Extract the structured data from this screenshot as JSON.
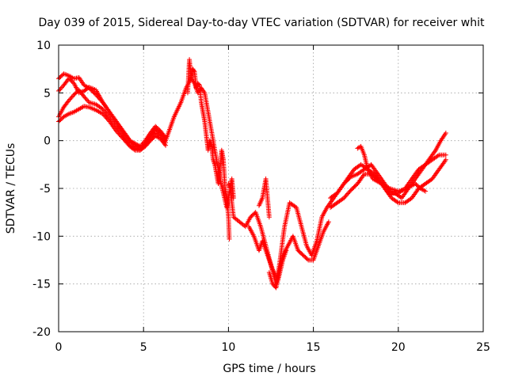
{
  "chart_data": {
    "type": "scatter",
    "title": "Day 039 of 2015, Sidereal Day-to-day VTEC variation (SDTVAR) for receiver whit",
    "xlabel": "GPS time / hours",
    "ylabel": "SDTVAR / TECUs",
    "xlim": [
      0,
      25
    ],
    "ylim": [
      -20,
      10
    ],
    "xticks": [
      0,
      5,
      10,
      15,
      20,
      25
    ],
    "yticks": [
      -20,
      -15,
      -10,
      -5,
      0,
      5,
      10
    ],
    "grid": true,
    "marker": "+",
    "marker_color": "#ff0000",
    "series": [
      {
        "x": [
          0.0,
          0.3,
          0.6,
          0.9,
          1.2,
          1.5,
          1.8,
          2.2,
          2.6,
          3.0,
          3.4,
          3.8,
          4.2,
          4.5,
          4.8,
          5.1,
          5.4,
          5.7,
          6.0,
          6.3,
          6.8,
          7.2,
          7.5,
          7.8,
          8.0,
          8.2,
          8.4,
          8.6,
          8.8,
          9.0,
          9.3,
          9.5,
          9.7,
          9.9,
          10.1,
          10.3,
          11.0,
          11.3,
          11.6,
          11.9,
          12.2,
          12.5,
          12.8,
          13.0,
          13.3,
          13.6,
          14.0,
          14.3,
          14.6,
          14.9,
          15.2,
          15.5,
          15.8,
          16.2,
          16.6,
          17.0,
          17.4,
          17.8,
          18.2,
          18.6,
          19.0,
          19.4,
          19.8,
          20.2,
          20.6,
          21.0,
          21.4,
          21.8,
          22.2,
          22.5,
          22.8
        ],
        "y": [
          6.5,
          7.0,
          6.8,
          6.5,
          6.6,
          5.8,
          5.5,
          4.8,
          4.0,
          3.0,
          2.0,
          1.0,
          0.0,
          -0.5,
          -0.8,
          -0.3,
          0.5,
          1.2,
          0.8,
          0.0,
          2.5,
          4.0,
          5.5,
          6.5,
          6.0,
          5.0,
          5.5,
          5.0,
          3.0,
          1.0,
          -2.0,
          -4.0,
          -5.5,
          -7.0,
          -5.0,
          -8.0,
          -9.0,
          -8.0,
          -7.5,
          -9.0,
          -11.0,
          -13.0,
          -15.0,
          -13.0,
          -9.0,
          -6.5,
          -7.0,
          -9.0,
          -11.0,
          -12.0,
          -10.5,
          -8.0,
          -7.0,
          -6.0,
          -5.0,
          -4.0,
          -3.0,
          -2.5,
          -3.0,
          -3.5,
          -4.5,
          -5.5,
          -5.5,
          -6.0,
          -5.0,
          -4.0,
          -3.0,
          -2.0,
          -1.0,
          0.0,
          0.8
        ]
      },
      {
        "x": [
          0.0,
          0.3,
          0.6,
          0.9,
          1.2,
          1.5,
          1.8,
          2.2,
          2.6,
          3.0,
          3.4,
          3.8,
          4.2,
          4.5,
          4.8,
          5.1,
          5.4,
          5.7,
          6.0,
          6.3
        ],
        "y": [
          5.2,
          5.8,
          6.5,
          6.0,
          5.0,
          5.2,
          5.6,
          5.3,
          4.0,
          3.0,
          2.0,
          1.0,
          0.0,
          -0.3,
          -0.6,
          0.0,
          0.8,
          1.5,
          1.0,
          0.3
        ]
      },
      {
        "x": [
          0.0,
          0.3,
          0.6,
          0.9,
          1.2,
          1.5,
          1.8,
          2.2,
          2.6,
          3.0,
          3.4,
          3.8,
          4.2,
          4.5,
          4.8,
          5.1,
          5.4,
          5.7,
          6.0,
          6.3
        ],
        "y": [
          2.5,
          3.5,
          4.2,
          4.8,
          5.3,
          4.6,
          4.0,
          3.8,
          3.3,
          2.4,
          1.5,
          0.5,
          -0.5,
          -0.8,
          -1.0,
          -0.5,
          0.2,
          0.8,
          0.5,
          -0.2
        ]
      },
      {
        "x": [
          0.0,
          0.3,
          0.6,
          0.9,
          1.2,
          1.5,
          1.8,
          2.2,
          2.6,
          3.0,
          3.4,
          3.8,
          4.2,
          4.5,
          4.8,
          5.1,
          5.4,
          5.7,
          6.0,
          6.3
        ],
        "y": [
          2.0,
          2.5,
          2.8,
          3.0,
          3.3,
          3.6,
          3.5,
          3.2,
          2.8,
          2.0,
          1.0,
          0.2,
          -0.6,
          -1.0,
          -1.0,
          -0.6,
          0.0,
          0.5,
          0.2,
          -0.5
        ]
      },
      {
        "x": [
          16.0,
          16.4,
          16.8,
          17.2,
          17.6,
          18.0,
          18.4,
          18.8,
          19.2,
          19.6,
          20.0,
          20.4,
          20.8,
          21.2,
          21.6,
          22.0,
          22.4,
          22.8
        ],
        "y": [
          -7.0,
          -6.5,
          -6.0,
          -5.2,
          -4.5,
          -3.5,
          -3.5,
          -4.0,
          -5.0,
          -6.0,
          -6.5,
          -6.5,
          -6.0,
          -5.0,
          -4.5,
          -4.0,
          -3.0,
          -2.0
        ]
      },
      {
        "x": [
          16.0,
          16.4,
          16.8,
          17.2,
          17.6,
          18.0,
          18.4,
          18.8,
          19.2,
          19.6,
          20.0,
          20.4,
          20.8,
          21.2,
          21.6,
          22.0,
          22.4,
          22.8
        ],
        "y": [
          -6.0,
          -5.5,
          -4.5,
          -3.8,
          -3.5,
          -3.0,
          -2.5,
          -3.5,
          -4.5,
          -5.5,
          -5.5,
          -5.0,
          -4.0,
          -3.0,
          -2.5,
          -2.0,
          -1.5,
          -1.5
        ]
      },
      {
        "x": [
          17.6,
          17.8,
          18.0,
          18.2,
          18.5,
          19.0,
          19.5,
          20.0,
          20.5,
          21.0,
          21.3,
          21.6
        ],
        "y": [
          -0.8,
          -0.6,
          -1.5,
          -3.0,
          -4.0,
          -4.5,
          -5.0,
          -5.3,
          -5.0,
          -4.5,
          -5.0,
          -5.3
        ]
      },
      {
        "x": [
          7.6,
          7.7,
          7.8,
          7.9,
          8.0,
          8.1,
          8.2,
          8.3,
          8.4,
          8.5,
          8.6,
          8.7,
          8.8,
          8.9,
          9.0,
          9.1,
          9.2,
          9.3,
          9.4,
          9.5,
          9.6,
          9.7,
          9.8,
          9.9,
          10.0,
          10.05
        ],
        "y": [
          5.0,
          8.5,
          6.5,
          7.5,
          7.2,
          5.5,
          6.0,
          5.8,
          4.0,
          3.0,
          2.0,
          0.5,
          -1.0,
          0.0,
          -0.5,
          -2.0,
          -2.5,
          -3.5,
          -4.5,
          -3.0,
          -1.0,
          -2.0,
          -5.0,
          -6.0,
          -8.0,
          -10.3
        ]
      },
      {
        "x": [
          10.0,
          10.1,
          10.2,
          10.3
        ],
        "y": [
          -4.5,
          -5.0,
          -4.0,
          -6.0
        ]
      },
      {
        "x": [
          11.2,
          11.5,
          11.8,
          12.0,
          12.3,
          12.6,
          12.9,
          13.2,
          13.5,
          13.8,
          14.1,
          14.4,
          14.7,
          15.0,
          15.3,
          15.6,
          15.9
        ],
        "y": [
          -9.0,
          -10.0,
          -11.5,
          -10.5,
          -12.0,
          -13.5,
          -14.5,
          -12.0,
          -11.0,
          -10.0,
          -11.5,
          -12.0,
          -12.5,
          -12.5,
          -11.0,
          -9.5,
          -8.5
        ]
      },
      {
        "x": [
          12.4,
          12.6,
          12.8,
          13.0,
          13.2,
          13.4
        ],
        "y": [
          -13.8,
          -15.0,
          -15.4,
          -14.0,
          -12.5,
          -11.5
        ]
      },
      {
        "x": [
          11.8,
          12.0,
          12.2,
          12.4
        ],
        "y": [
          -6.8,
          -6.0,
          -4.0,
          -8.0
        ]
      }
    ]
  }
}
